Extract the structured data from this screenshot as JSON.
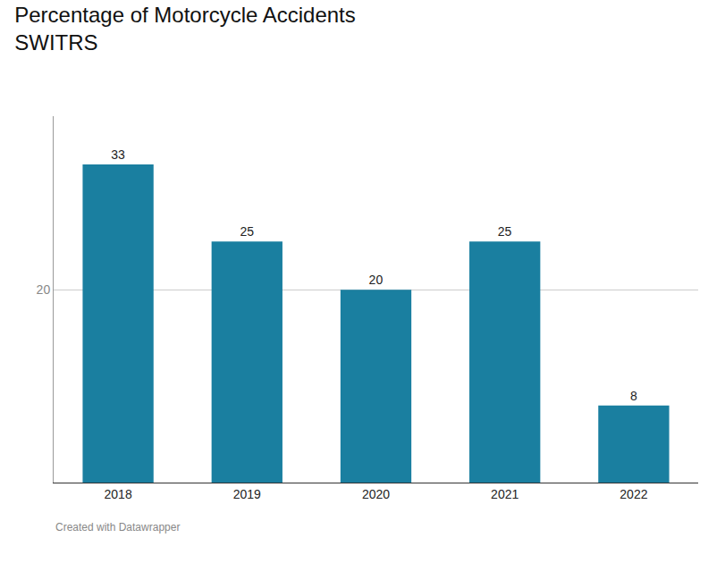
{
  "chart_data": {
    "type": "bar",
    "title": "Percentage of Motorcycle Accidents",
    "subtitle": "SWITRS",
    "annotations": [
      "Created with Datawrapper"
    ],
    "categories": [
      "2018",
      "2019",
      "2020",
      "2021",
      "2022"
    ],
    "values": [
      33,
      25,
      20,
      25,
      8
    ],
    "color": "#1a7fa0",
    "ylim": [
      0,
      38
    ],
    "yticks": [
      20
    ],
    "grid": true,
    "data_labels": true
  }
}
